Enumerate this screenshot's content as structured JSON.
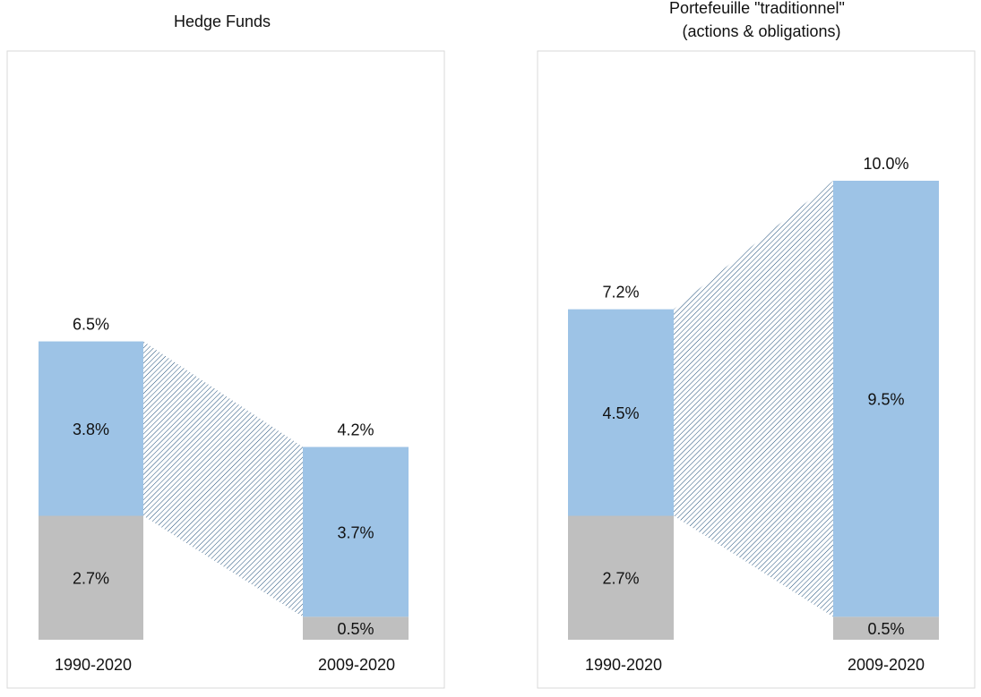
{
  "chart_data": [
    {
      "type": "bar",
      "stacked": true,
      "title": "Hedge Funds",
      "categories": [
        "1990-2020",
        "2009-2020"
      ],
      "series": [
        {
          "values": [
            2.7,
            0.5
          ],
          "labels": [
            "2.7%",
            "0.5%"
          ]
        },
        {
          "values": [
            3.8,
            3.7
          ],
          "labels": [
            "3.8%",
            "3.7%"
          ]
        }
      ],
      "totals": [
        6.5,
        4.2
      ],
      "total_labels": [
        "6.5%",
        "4.2%"
      ],
      "ylim": [
        0,
        11.5
      ],
      "grid": false,
      "legend": "none"
    },
    {
      "type": "bar",
      "stacked": true,
      "title_lines": [
        "Portefeuille \"traditionnel\"",
        "(actions & obligations)"
      ],
      "categories": [
        "1990-2020",
        "2009-2020"
      ],
      "series": [
        {
          "values": [
            2.7,
            0.5
          ],
          "labels": [
            "2.7%",
            "0.5%"
          ]
        },
        {
          "values": [
            4.5,
            9.5
          ],
          "labels": [
            "4.5%",
            "9.5%"
          ]
        }
      ],
      "totals": [
        7.2,
        10.0
      ],
      "total_labels": [
        "7.2%",
        "10.0%"
      ],
      "ylim": [
        0,
        11.5
      ],
      "grid": false,
      "legend": "none"
    }
  ],
  "colors": {
    "bottom_segment": "#bfbfbf",
    "top_segment": "#9dc3e6",
    "hatch": "#1f4e79",
    "panel_border": "#d9d9d9"
  }
}
